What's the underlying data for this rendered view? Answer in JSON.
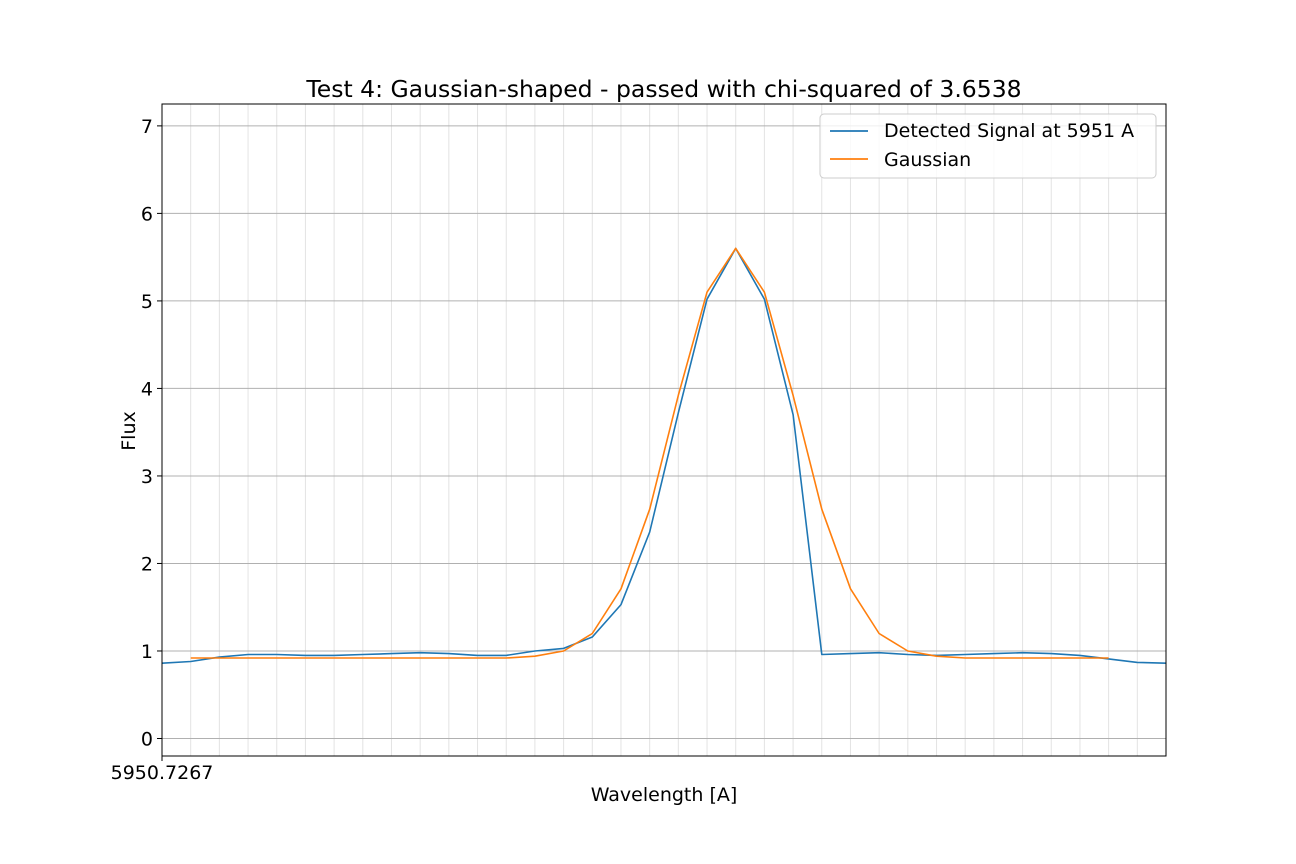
{
  "chart_data": {
    "type": "line",
    "title": "Test 4: Gaussian-shaped - passed with chi-squared of 3.6538",
    "xlabel": "Wavelength [A]",
    "ylabel": "Flux",
    "x_tick_label": "5950.7267",
    "xlim": [
      0,
      35
    ],
    "ylim": [
      -0.2,
      7.25
    ],
    "y_ticks": [
      0,
      1,
      2,
      3,
      4,
      5,
      6,
      7
    ],
    "x_minor_grid": [
      1,
      2,
      3,
      4,
      5,
      6,
      7,
      8,
      9,
      10,
      11,
      12,
      13,
      14,
      15,
      16,
      17,
      18,
      19,
      20,
      21,
      22,
      23,
      24,
      25,
      26,
      27,
      28,
      29,
      30,
      31,
      32,
      33,
      34
    ],
    "grid": true,
    "legend_position": "top-right",
    "series": [
      {
        "name": "Detected Signal at 5951 A",
        "color": "#1f77b4",
        "x": [
          0,
          1,
          2,
          3,
          4,
          5,
          6,
          7,
          8,
          9,
          10,
          11,
          12,
          13,
          14,
          15,
          16,
          17,
          18,
          19,
          20,
          21,
          22,
          23,
          24,
          25,
          26,
          27,
          28,
          29,
          30,
          31,
          32,
          33,
          34,
          35
        ],
        "values": [
          0.86,
          0.88,
          0.93,
          0.96,
          0.96,
          0.95,
          0.95,
          0.96,
          0.97,
          0.98,
          0.97,
          0.95,
          0.95,
          1.0,
          1.03,
          1.16,
          1.53,
          2.36,
          3.72,
          5.02,
          5.6,
          5.02,
          3.7,
          0.96,
          0.97,
          0.98,
          0.96,
          0.95,
          0.96,
          0.97,
          0.98,
          0.97,
          0.95,
          0.91,
          0.87,
          0.86
        ]
      },
      {
        "name": "Gaussian",
        "color": "#ff7f0e",
        "x": [
          1,
          2,
          3,
          4,
          5,
          6,
          7,
          8,
          9,
          10,
          11,
          12,
          13,
          14,
          15,
          16,
          17,
          18,
          19,
          20,
          21,
          22,
          23,
          24,
          25,
          26,
          27,
          28,
          29,
          30,
          31,
          32,
          33
        ],
        "values": [
          0.92,
          0.92,
          0.92,
          0.92,
          0.92,
          0.92,
          0.92,
          0.92,
          0.92,
          0.92,
          0.92,
          0.92,
          0.94,
          1.0,
          1.2,
          1.71,
          2.62,
          3.92,
          5.1,
          5.6,
          5.1,
          3.92,
          2.62,
          1.71,
          1.2,
          1.0,
          0.94,
          0.92,
          0.92,
          0.92,
          0.92,
          0.92,
          0.92
        ]
      }
    ]
  }
}
